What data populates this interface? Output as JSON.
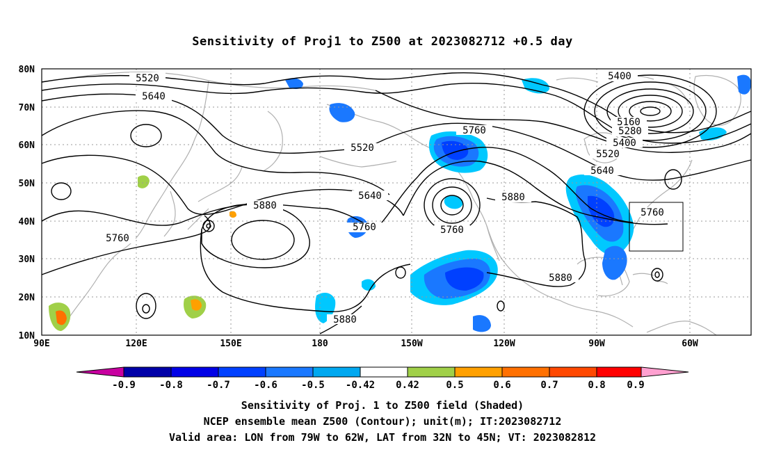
{
  "title": "Sensitivity of Proj1 to Z500 at 2023082712 +0.5 day",
  "map": {
    "lat_labels": [
      "80N",
      "70N",
      "60N",
      "50N",
      "40N",
      "30N",
      "20N",
      "10N"
    ],
    "lon_labels": [
      "90E",
      "120E",
      "150E",
      "180",
      "150W",
      "120W",
      "90W",
      "60W"
    ],
    "contour_labels": [
      "5520",
      "5640",
      "5760",
      "5880",
      "5400",
      "5160",
      "5280",
      "5520",
      "5400",
      "5640",
      "5760",
      "5880",
      "5760",
      "5640",
      "5520",
      "5880",
      "5760",
      "5880",
      "5760"
    ],
    "valid_area": {
      "lon_from": "79W",
      "lon_to": "62W",
      "lat_from": "32N",
      "lat_to": "45N"
    }
  },
  "colorbar": {
    "labels": [
      "-0.9",
      "-0.8",
      "-0.7",
      "-0.6",
      "-0.5",
      "-0.42",
      "0.42",
      "0.5",
      "0.6",
      "0.7",
      "0.8",
      "0.9"
    ],
    "colors": [
      "#0000a8",
      "#0000e6",
      "#0040ff",
      "#1a78ff",
      "#00a8f0",
      "#00c8ff",
      "#ffffff",
      "#a0d048",
      "#ffa000",
      "#ff7000",
      "#ff4800",
      "#ff0000"
    ],
    "under_color": "#c800a0",
    "over_color": "#ffa0d0"
  },
  "footer": {
    "line1": "Sensitivity of Proj. 1 to Z500 field (Shaded)",
    "line2": "NCEP ensemble mean Z500 (Contour); unit(m); IT:2023082712",
    "line3": "Valid area: LON from 79W to 62W, LAT from 32N to 45N; VT: 2023082812"
  }
}
